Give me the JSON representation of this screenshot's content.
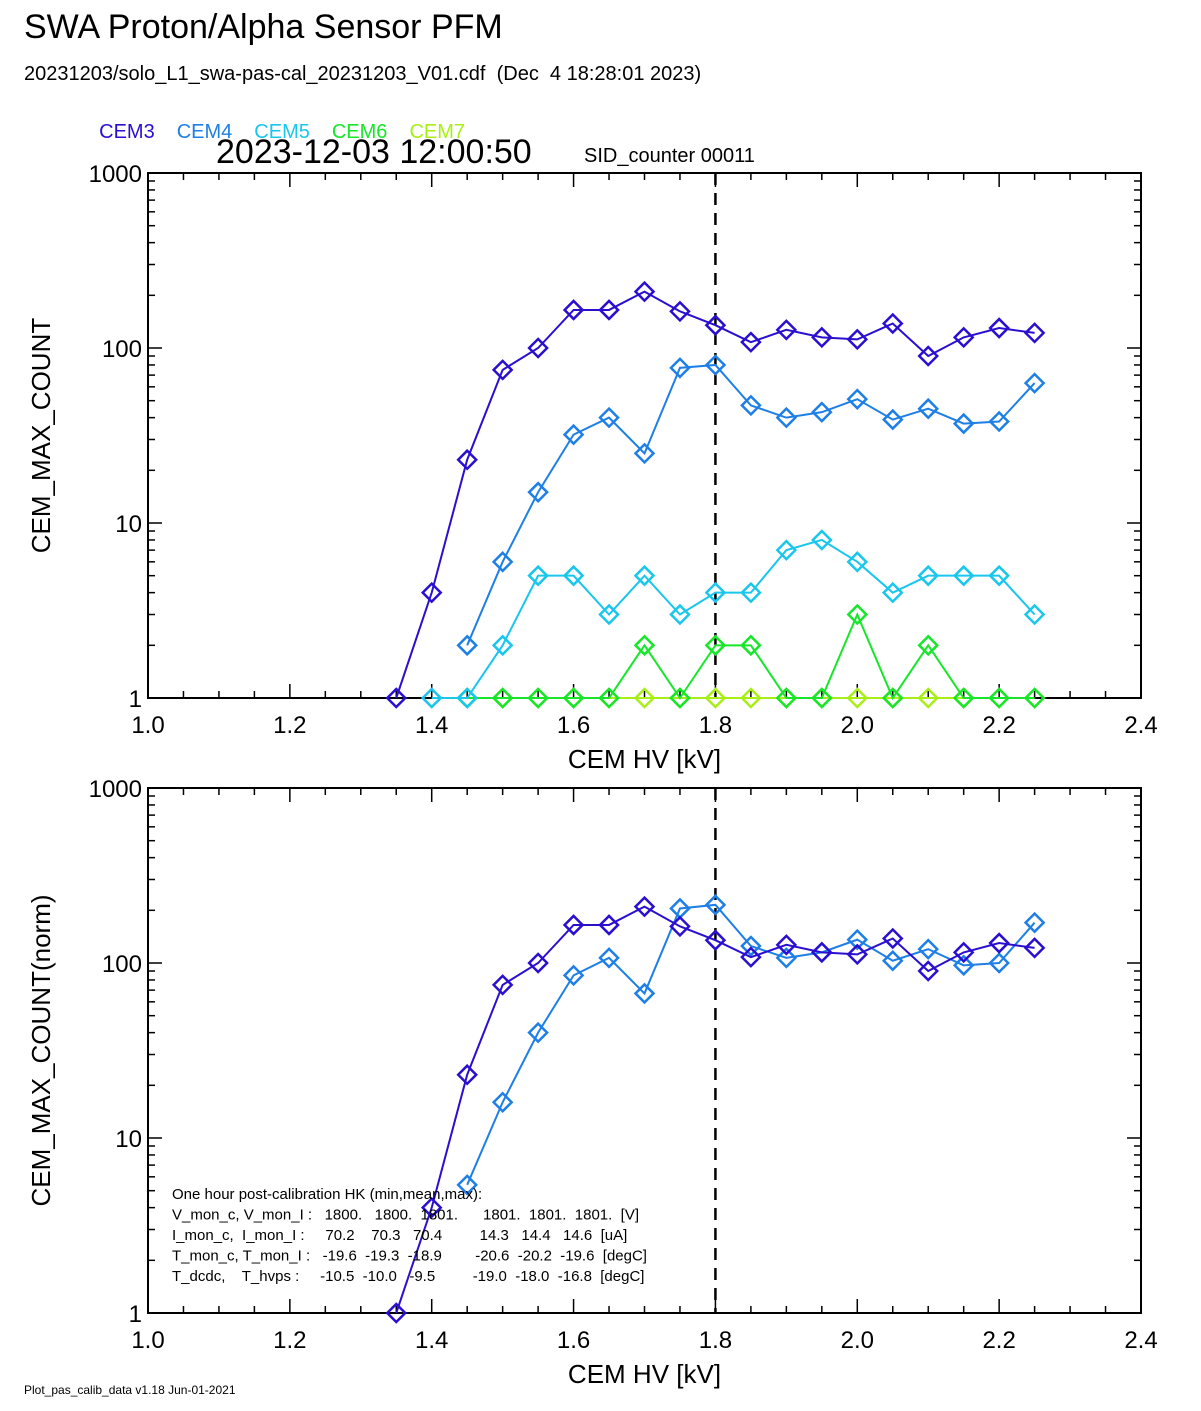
{
  "header": {
    "title": "SWA Proton/Alpha Sensor PFM",
    "subtitle": "20231203/solo_L1_swa-pas-cal_20231203_V01.cdf  (Dec  4 18:28:01 2023)",
    "timestamp": "2023-12-03 12:00:50",
    "sid_counter": "SID_counter 00011"
  },
  "legend": [
    {
      "name": "CEM3",
      "color": "#2a0fd0"
    },
    {
      "name": "CEM4",
      "color": "#1e7fe6"
    },
    {
      "name": "CEM5",
      "color": "#19c6ec"
    },
    {
      "name": "CEM6",
      "color": "#17e62a"
    },
    {
      "name": "CEM7",
      "color": "#a8ef17"
    }
  ],
  "footer": "Plot_pas_calib_data v1.18 Jun-01-2021",
  "hk_box": [
    "One hour post-calibration HK (min,mean,max):",
    "V_mon_c, V_mon_I :   1800.   1800.  1801.      1801.  1801.  1801.  [V]",
    "I_mon_c,  I_mon_I :     70.2    70.3   70.4         14.3   14.4   14.6  [uA]",
    "T_mon_c, T_mon_I :   -19.6  -19.3  -18.9        -20.6  -20.2  -19.6  [degC]",
    "T_dcdc,    T_hvps :     -10.5  -10.0   -9.5         -19.0  -18.0  -16.8  [degC]"
  ],
  "chart_data": [
    {
      "type": "line",
      "xlabel": "CEM HV [kV]",
      "ylabel": "CEM_MAX_COUNT",
      "xlim": [
        1.0,
        2.4
      ],
      "ylim": [
        1,
        1000
      ],
      "yscale": "log",
      "x_ticks": [
        "1.0",
        "1.2",
        "1.4",
        "1.6",
        "1.8",
        "2.0",
        "2.2",
        "2.4"
      ],
      "y_ticks": [
        "1",
        "10",
        "100",
        "1000"
      ],
      "vline_x": 1.8,
      "x": [
        1.35,
        1.4,
        1.45,
        1.5,
        1.55,
        1.6,
        1.65,
        1.7,
        1.75,
        1.8,
        1.85,
        1.9,
        1.95,
        2.0,
        2.05,
        2.1,
        2.15,
        2.2,
        2.25
      ],
      "series": [
        {
          "name": "CEM3",
          "color": "#2a0fd0",
          "values": [
            1,
            4,
            23,
            75,
            100,
            165,
            165,
            210,
            162,
            135,
            108,
            127,
            115,
            112,
            138,
            90,
            115,
            130,
            122
          ]
        },
        {
          "name": "CEM4",
          "color": "#1e7fe6",
          "values": [
            null,
            null,
            2,
            6,
            15,
            32,
            40,
            25,
            77,
            80,
            47,
            40,
            43,
            51,
            39,
            45,
            37,
            38,
            63
          ]
        },
        {
          "name": "CEM5",
          "color": "#19c6ec",
          "values": [
            null,
            1,
            1,
            2,
            5,
            5,
            3,
            5,
            3,
            4,
            4,
            7,
            8,
            6,
            4,
            5,
            5,
            5,
            3
          ]
        },
        {
          "name": "CEM6",
          "color": "#17e62a",
          "values": [
            null,
            null,
            1,
            1,
            1,
            1,
            1,
            2,
            1,
            2,
            2,
            1,
            1,
            3,
            1,
            2,
            1,
            1,
            1
          ]
        },
        {
          "name": "CEM7",
          "color": "#a8ef17",
          "values": [
            null,
            null,
            1,
            1,
            1,
            1,
            1,
            1,
            1,
            1,
            1,
            1,
            1,
            1,
            1,
            1,
            1,
            1,
            1
          ]
        }
      ]
    },
    {
      "type": "line",
      "xlabel": "CEM HV [kV]",
      "ylabel": "CEM_MAX_COUNT(norm)",
      "xlim": [
        1.0,
        2.4
      ],
      "ylim": [
        1,
        1000
      ],
      "yscale": "log",
      "x_ticks": [
        "1.0",
        "1.2",
        "1.4",
        "1.6",
        "1.8",
        "2.0",
        "2.2",
        "2.4"
      ],
      "y_ticks": [
        "1",
        "10",
        "100",
        "1000"
      ],
      "vline_x": 1.8,
      "x": [
        1.35,
        1.4,
        1.45,
        1.5,
        1.55,
        1.6,
        1.65,
        1.7,
        1.75,
        1.8,
        1.85,
        1.9,
        1.95,
        2.0,
        2.05,
        2.1,
        2.15,
        2.2,
        2.25
      ],
      "series": [
        {
          "name": "CEM3",
          "color": "#2a0fd0",
          "values": [
            1,
            4,
            23,
            75,
            100,
            165,
            165,
            210,
            162,
            135,
            108,
            127,
            115,
            112,
            138,
            90,
            115,
            130,
            122
          ]
        },
        {
          "name": "CEM4",
          "color": "#1e7fe6",
          "values": [
            null,
            null,
            5.4,
            16,
            40,
            85,
            107,
            67,
            205,
            215,
            125,
            107,
            115,
            136,
            103,
            120,
            97,
            100,
            170
          ]
        }
      ]
    }
  ]
}
